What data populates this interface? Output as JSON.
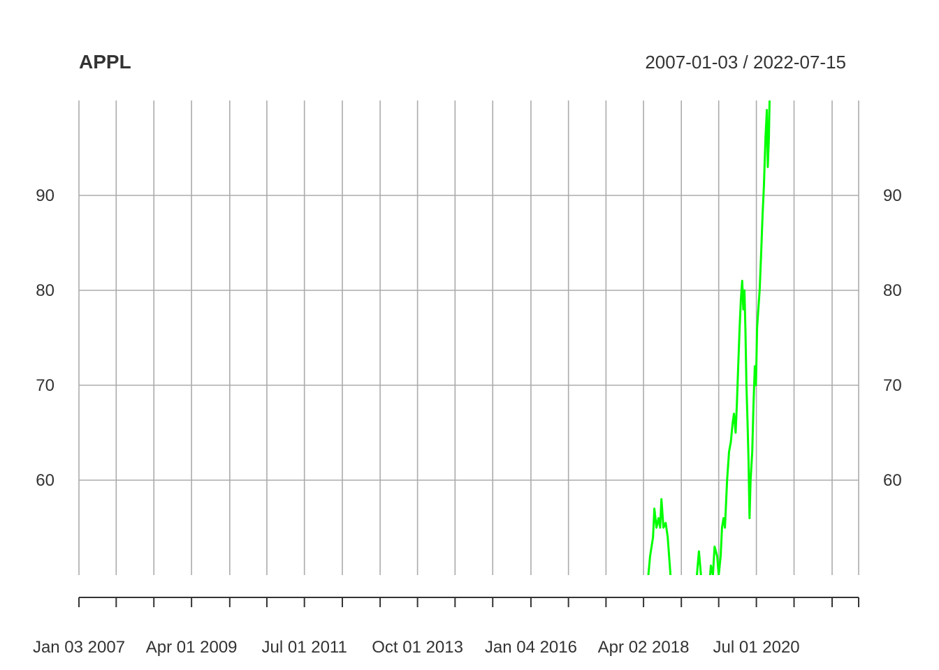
{
  "chart_data": {
    "type": "line",
    "title": "APPL",
    "date_range": "2007-01-03 / 2022-07-15",
    "x_range": [
      "2007-01-03",
      "2022-07-15"
    ],
    "ylim": [
      50,
      100
    ],
    "grid": true,
    "y_ticks": [
      60,
      70,
      80,
      90
    ],
    "y_tick_labels": [
      "60",
      "70",
      "80",
      "90"
    ],
    "x_tick_dates": [
      "2007-01-03",
      "2007-10-01",
      "2008-07-01",
      "2009-04-01",
      "2010-01-04",
      "2010-10-01",
      "2011-07-01",
      "2012-04-02",
      "2013-01-02",
      "2013-10-01",
      "2014-07-01",
      "2015-04-01",
      "2016-01-04",
      "2016-10-03",
      "2017-07-03",
      "2018-04-02",
      "2019-01-02",
      "2019-10-01",
      "2020-07-01",
      "2021-04-01",
      "2022-01-03",
      "2022-07-15"
    ],
    "x_labels": [
      {
        "date": "2007-01-03",
        "text": "Jan 03 2007"
      },
      {
        "date": "2009-04-01",
        "text": "Apr 01 2009"
      },
      {
        "date": "2011-07-01",
        "text": "Jul 01 2011"
      },
      {
        "date": "2013-10-01",
        "text": "Oct 01 2013"
      },
      {
        "date": "2016-01-04",
        "text": "Jan 04 2016"
      },
      {
        "date": "2018-04-02",
        "text": "Apr 02 2018"
      },
      {
        "date": "2020-07-01",
        "text": "Jul 01 2020"
      }
    ],
    "series": [
      {
        "color": "#00ff00",
        "points": [
          [
            "2018-05-07",
            50
          ],
          [
            "2018-05-20",
            52
          ],
          [
            "2018-06-10",
            54
          ],
          [
            "2018-06-20",
            57
          ],
          [
            "2018-07-05",
            55
          ],
          [
            "2018-07-20",
            56
          ],
          [
            "2018-08-01",
            55
          ],
          [
            "2018-08-10",
            58
          ],
          [
            "2018-08-25",
            55
          ],
          [
            "2018-09-10",
            55.5
          ],
          [
            "2018-09-25",
            54
          ],
          [
            "2018-10-10",
            51
          ],
          [
            "2018-10-20",
            49
          ],
          [
            "2019-04-20",
            49
          ],
          [
            "2019-05-01",
            51
          ],
          [
            "2019-05-10",
            52.5
          ],
          [
            "2019-05-25",
            50
          ],
          [
            "2019-06-05",
            49
          ],
          [
            "2019-07-25",
            49
          ],
          [
            "2019-08-05",
            51
          ],
          [
            "2019-08-20",
            50
          ],
          [
            "2019-09-01",
            53
          ],
          [
            "2019-09-20",
            52
          ],
          [
            "2019-10-01",
            50
          ],
          [
            "2019-10-15",
            52
          ],
          [
            "2019-10-25",
            55
          ],
          [
            "2019-11-05",
            56
          ],
          [
            "2019-11-15",
            55
          ],
          [
            "2019-12-01",
            60
          ],
          [
            "2019-12-15",
            63
          ],
          [
            "2019-12-28",
            64
          ],
          [
            "2020-01-10",
            66
          ],
          [
            "2020-01-20",
            67
          ],
          [
            "2020-02-01",
            65
          ],
          [
            "2020-02-10",
            68
          ],
          [
            "2020-02-20",
            72
          ],
          [
            "2020-03-01",
            76
          ],
          [
            "2020-03-10",
            79
          ],
          [
            "2020-03-20",
            81
          ],
          [
            "2020-03-28",
            78
          ],
          [
            "2020-04-05",
            80
          ],
          [
            "2020-04-12",
            76
          ],
          [
            "2020-04-20",
            70
          ],
          [
            "2020-04-28",
            66
          ],
          [
            "2020-05-05",
            62
          ],
          [
            "2020-05-12",
            56
          ],
          [
            "2020-05-20",
            60
          ],
          [
            "2020-06-01",
            63
          ],
          [
            "2020-06-10",
            68
          ],
          [
            "2020-06-20",
            72
          ],
          [
            "2020-06-28",
            70
          ],
          [
            "2020-07-06",
            76
          ],
          [
            "2020-07-15",
            78
          ],
          [
            "2020-07-25",
            80
          ],
          [
            "2020-08-05",
            84
          ],
          [
            "2020-08-15",
            88
          ],
          [
            "2020-08-25",
            91
          ],
          [
            "2020-09-05",
            96
          ],
          [
            "2020-09-15",
            99
          ],
          [
            "2020-09-22",
            93
          ],
          [
            "2020-09-30",
            96
          ],
          [
            "2020-10-05",
            100
          ]
        ]
      }
    ]
  }
}
